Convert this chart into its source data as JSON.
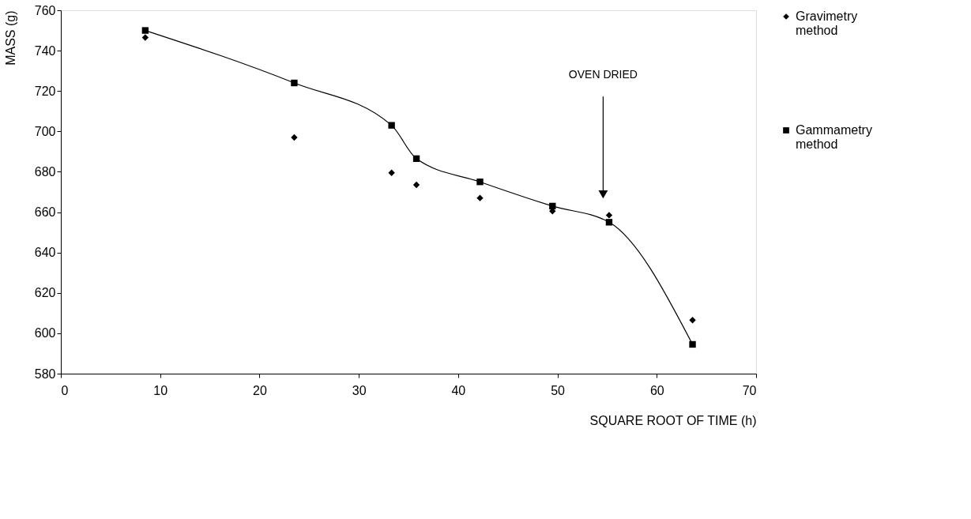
{
  "chart_data": {
    "type": "line",
    "xlabel": "SQUARE ROOT OF TIME (h)",
    "ylabel": "MASS (g)",
    "x": [
      8.5,
      23.5,
      33.3,
      35.8,
      42.2,
      49.5,
      55.2,
      63.6
    ],
    "series": [
      {
        "name": "Gravimetry method",
        "type": "scatter",
        "marker": "diamond",
        "color": "#000000",
        "values": [
          746.5,
          697,
          679.5,
          673.5,
          667,
          660.5,
          658.5,
          606.5
        ]
      },
      {
        "name": "Gammametry method",
        "marker": "square",
        "color": "#000000",
        "values": [
          750,
          724,
          703,
          686.5,
          675,
          663,
          655,
          594.5
        ]
      }
    ],
    "xlim": [
      0,
      70
    ],
    "xticks": [
      0,
      10,
      20,
      30,
      40,
      50,
      60,
      70
    ],
    "ylim": [
      580,
      760
    ],
    "yticks": [
      580,
      600,
      620,
      640,
      660,
      680,
      700,
      720,
      740,
      760
    ],
    "annotations": [
      "OVEN DRIED"
    ],
    "legend": "right",
    "grid": false
  }
}
